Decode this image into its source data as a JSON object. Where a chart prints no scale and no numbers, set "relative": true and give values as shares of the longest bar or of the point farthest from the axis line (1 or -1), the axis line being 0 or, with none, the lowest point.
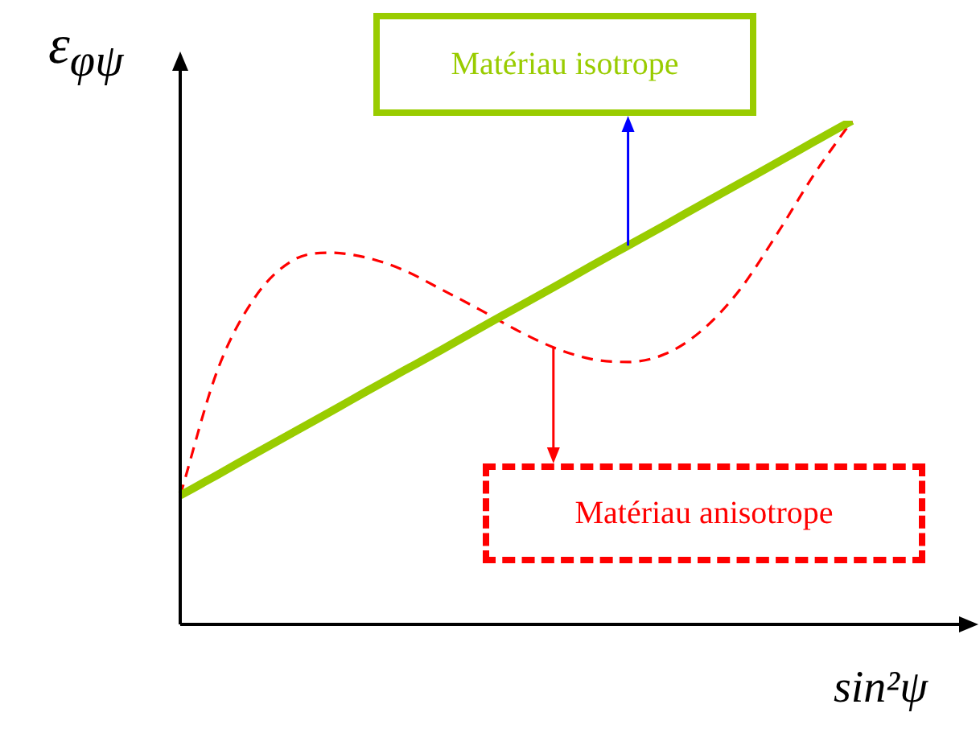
{
  "chart_data": {
    "type": "line",
    "relative": true,
    "xlabel": "sin²ψ",
    "ylabel": "ε$_{φψ}$",
    "marker": "none",
    "legend": false,
    "annotations": [
      "Matériau isotrope",
      "Matériau anisotrope"
    ],
    "categories": [
      null,
      null,
      null,
      null,
      null,
      null,
      null,
      null,
      null,
      null,
      null,
      null,
      null,
      null,
      null,
      null,
      null,
      null,
      null,
      null,
      null,
      null
    ],
    "series": [
      {
        "color": "#99cc00",
        "line_style": "solid",
        "values": [
          0.256,
          0.297,
          0.339,
          0.38,
          0.421,
          0.463,
          0.504,
          0.545,
          0.587,
          0.628,
          0.669,
          0.711,
          0.752,
          0.793,
          0.835,
          0.876,
          0.917,
          0.959,
          1,
          null,
          null,
          null
        ]
      },
      {
        "color": "#ff0000",
        "line_style": "dashed",
        "values": [
          0.256,
          0.505,
          0.649,
          0.722,
          0.738,
          0.728,
          0.703,
          0.665,
          0.626,
          0.585,
          0.55,
          0.527,
          0.521,
          0.537,
          0.585,
          0.665,
          0.776,
          0.895,
          1,
          null,
          null,
          null
        ]
      }
    ]
  }
}
